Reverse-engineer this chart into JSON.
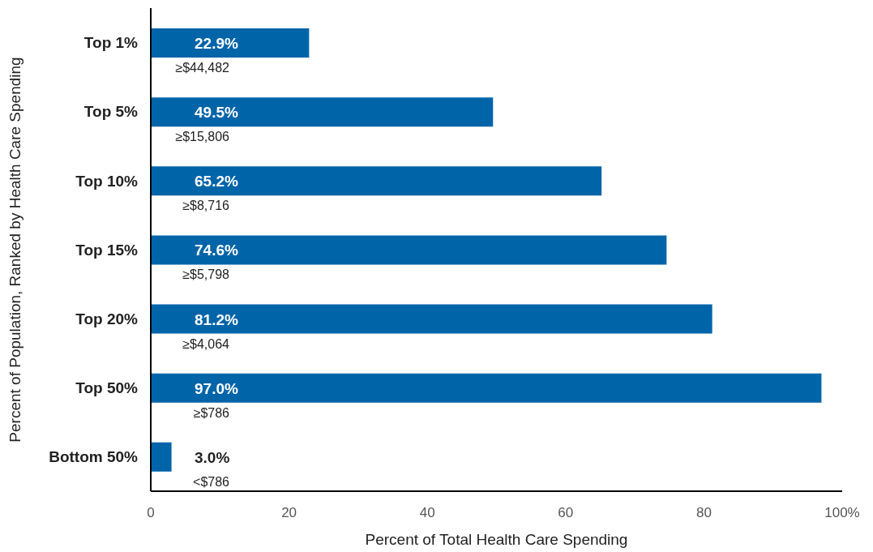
{
  "chart_data": {
    "type": "bar",
    "orientation": "horizontal",
    "ylabel": "Percent of Population, Ranked by Health Care Spending",
    "xlabel": "Percent of Total Health Care Spending",
    "categories": [
      "Top 1%",
      "Top 5%",
      "Top 10%",
      "Top 15%",
      "Top 20%",
      "Top 50%",
      "Bottom 50%"
    ],
    "values": [
      22.9,
      49.5,
      65.2,
      74.6,
      81.2,
      97.0,
      3.0
    ],
    "value_labels": [
      "22.9%",
      "49.5%",
      "65.2%",
      "74.6%",
      "81.2%",
      "97.0%",
      "3.0%"
    ],
    "color": "#0064a8",
    "xlim": [
      0,
      100
    ],
    "xticks": [
      0,
      20,
      40,
      60,
      80,
      {
        "value": 100,
        "label": "100%"
      }
    ],
    "annotations": [
      "≥$44,482",
      "≥$15,806",
      "≥$8,716",
      "≥$5,798",
      "≥$4,064",
      "≥$786",
      "<$786"
    ]
  }
}
